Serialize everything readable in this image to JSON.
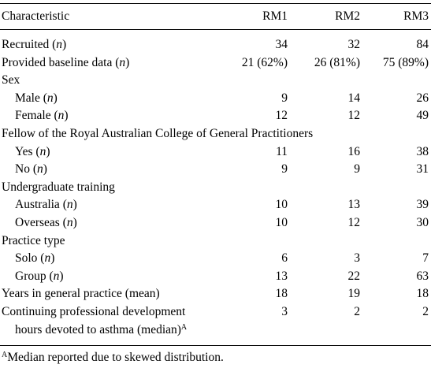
{
  "table": {
    "headers": [
      "Characteristic",
      "RM1",
      "RM2",
      "RM3"
    ],
    "rows": [
      {
        "label": "Recruited (",
        "unit": "n",
        "tail": ")",
        "v1": "34",
        "v2": "32",
        "v3": "84",
        "indent": false
      },
      {
        "label": "Provided baseline data (",
        "unit": "n",
        "tail": ")",
        "v1": "21 (62%)",
        "v2": "26 (81%)",
        "v3": "75 (89%)",
        "indent": false
      },
      {
        "label": "Sex",
        "indent": false
      },
      {
        "label": "Male (",
        "unit": "n",
        "tail": ")",
        "v1": "9",
        "v2": "14",
        "v3": "26",
        "indent": true
      },
      {
        "label": "Female (",
        "unit": "n",
        "tail": ")",
        "v1": "12",
        "v2": "12",
        "v3": "49",
        "indent": true
      },
      {
        "label": "Fellow of the Royal Australian College of General Practitioners",
        "indent": false
      },
      {
        "label": "Yes (",
        "unit": "n",
        "tail": ")",
        "v1": "11",
        "v2": "16",
        "v3": "38",
        "indent": true
      },
      {
        "label": "No (",
        "unit": "n",
        "tail": ")",
        "v1": "9",
        "v2": "9",
        "v3": "31",
        "indent": true
      },
      {
        "label": "Undergraduate training",
        "indent": false
      },
      {
        "label": "Australia (",
        "unit": "n",
        "tail": ")",
        "v1": "10",
        "v2": "13",
        "v3": "39",
        "indent": true
      },
      {
        "label": "Overseas (",
        "unit": "n",
        "tail": ")",
        "v1": "10",
        "v2": "12",
        "v3": "30",
        "indent": true
      },
      {
        "label": "Practice type",
        "indent": false
      },
      {
        "label": "Solo (",
        "unit": "n",
        "tail": ")",
        "v1": "6",
        "v2": "3",
        "v3": "7",
        "indent": true
      },
      {
        "label": "Group (",
        "unit": "n",
        "tail": ")",
        "v1": "13",
        "v2": "22",
        "v3": "63",
        "indent": true
      },
      {
        "label": "Years in general practice (mean)",
        "v1": "18",
        "v2": "19",
        "v3": "18",
        "indent": false
      },
      {
        "label": "Continuing professional development",
        "label2": "hours devoted to asthma (median)",
        "sup": "A",
        "v1": "3",
        "v2": "2",
        "v3": "2",
        "indent": false
      }
    ]
  },
  "footnote": {
    "marker": "A",
    "text": "Median reported due to skewed distribution."
  }
}
